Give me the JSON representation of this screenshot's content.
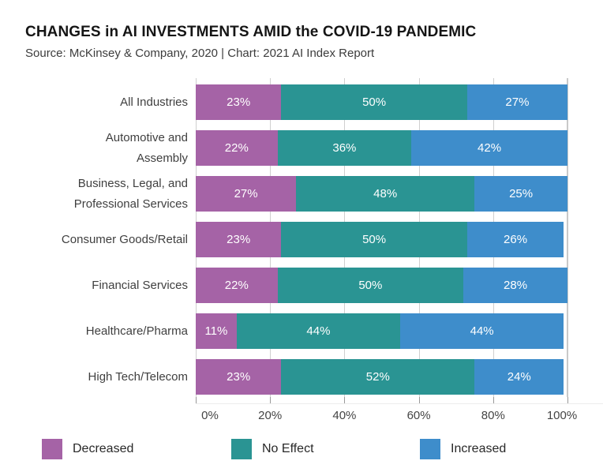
{
  "header": {
    "title": "CHANGES in AI INVESTMENTS AMID the COVID-19 PANDEMIC",
    "subtitle": "Source: McKinsey & Company, 2020 | Chart: 2021 AI Index Report"
  },
  "colors": {
    "decreased": "#a563a6",
    "no_effect": "#2a9493",
    "increased": "#3e8dcb",
    "gridline": "#cfcfcf",
    "tick_mark": "#999999",
    "axis_text": "#444444",
    "category_text": "#3f3f3f",
    "bar_value_text": "#ffffff"
  },
  "chart_data": {
    "type": "bar",
    "orientation": "horizontal",
    "stacked": true,
    "title": "CHANGES in AI INVESTMENTS AMID the COVID-19 PANDEMIC",
    "source_note": "Source: McKinsey & Company, 2020 | Chart: 2021 AI Index Report",
    "categories": [
      "All Industries",
      "Automotive and Assembly",
      "Business, Legal, and Professional Services",
      "Consumer Goods/Retail",
      "Financial Services",
      "Healthcare/Pharma",
      "High Tech/Telecom"
    ],
    "category_lines": [
      [
        "All Industries"
      ],
      [
        "Automotive and",
        "Assembly"
      ],
      [
        "Business, Legal, and",
        "Professional Services"
      ],
      [
        "Consumer Goods/Retail"
      ],
      [
        "Financial Services"
      ],
      [
        "Healthcare/Pharma"
      ],
      [
        "High Tech/Telecom"
      ]
    ],
    "series": [
      {
        "name": "Decreased",
        "key": "decreased",
        "values": [
          23,
          22,
          27,
          23,
          22,
          11,
          23
        ]
      },
      {
        "name": "No Effect",
        "key": "no_effect",
        "values": [
          50,
          36,
          48,
          50,
          50,
          44,
          52
        ]
      },
      {
        "name": "Increased",
        "key": "increased",
        "values": [
          27,
          42,
          25,
          26,
          28,
          44,
          24
        ]
      }
    ],
    "value_suffix": "%",
    "xlim": [
      0,
      100
    ],
    "x_tick_values": [
      0,
      20,
      40,
      60,
      80,
      100
    ],
    "x_ticks": [
      "0%",
      "20%",
      "40%",
      "60%",
      "80%",
      "100%"
    ],
    "grid": true,
    "legend": [
      "Decreased",
      "No Effect",
      "Increased"
    ],
    "legend_position": "bottom"
  }
}
